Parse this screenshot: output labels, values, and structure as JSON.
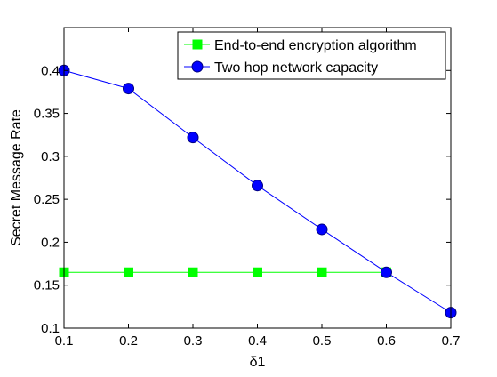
{
  "chart_data": {
    "type": "line",
    "title": "",
    "xlabel": "δ1",
    "ylabel": "Secret Message Rate",
    "xlim": [
      0.1,
      0.7
    ],
    "ylim": [
      0.1,
      0.45
    ],
    "xticks": [
      0.1,
      0.2,
      0.3,
      0.4,
      0.5,
      0.6,
      0.7
    ],
    "xtick_labels": [
      "0.1",
      "0.2",
      "0.3",
      "0.4",
      "0.5",
      "0.6",
      "0.7"
    ],
    "yticks": [
      0.1,
      0.15,
      0.2,
      0.25,
      0.3,
      0.35,
      0.4
    ],
    "ytick_labels": [
      "0.1",
      "0.15",
      "0.2",
      "0.25",
      "0.3",
      "0.35",
      "0.4"
    ],
    "grid": false,
    "legend_position": "top-right",
    "series": [
      {
        "name": "End-to-end encryption algorithm",
        "color": "#00ff00",
        "marker": "square",
        "x": [
          0.1,
          0.2,
          0.3,
          0.4,
          0.5,
          0.6
        ],
        "y": [
          0.165,
          0.165,
          0.165,
          0.165,
          0.165,
          0.165
        ]
      },
      {
        "name": "Two hop network capacity",
        "color": "#0000ff",
        "marker": "circle",
        "x": [
          0.1,
          0.2,
          0.3,
          0.4,
          0.5,
          0.6,
          0.7
        ],
        "y": [
          0.4,
          0.379,
          0.322,
          0.266,
          0.215,
          0.165,
          0.118
        ]
      }
    ]
  }
}
